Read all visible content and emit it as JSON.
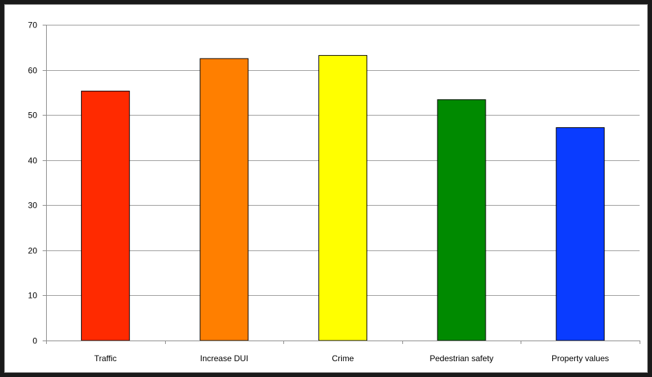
{
  "chart_data": {
    "type": "bar",
    "title": "",
    "xlabel": "",
    "ylabel": "",
    "categories": [
      "Traffic",
      "Increase DUI",
      "Crime",
      "Pedestrian safety",
      "Property values"
    ],
    "values": [
      55.3,
      62.5,
      63.2,
      53.4,
      47.2
    ],
    "colors": [
      "#ff2a00",
      "#ff7f00",
      "#ffff00",
      "#008a00",
      "#0a3cff"
    ],
    "ylim": [
      0,
      70
    ],
    "yticks": [
      "0",
      "10",
      "20",
      "30",
      "40",
      "50",
      "60",
      "70"
    ],
    "grid": true,
    "legend": "none"
  }
}
